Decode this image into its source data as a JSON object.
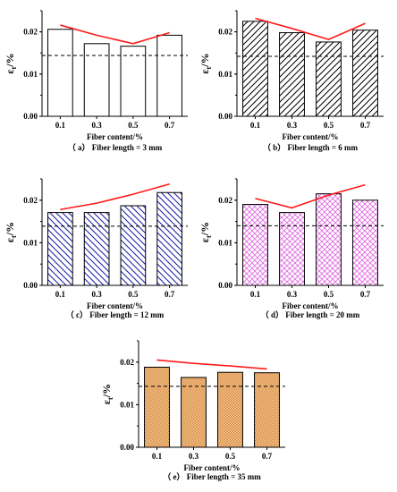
{
  "chart_data": [
    {
      "type": "bar",
      "panel": "a",
      "caption_prefix": "（ a）",
      "caption": "Fiber length = 3 mm",
      "categories": [
        "0.1",
        "0.3",
        "0.5",
        "0.7"
      ],
      "values": [
        0.0206,
        0.0172,
        0.0166,
        0.0192
      ],
      "trend": [
        0.0216,
        0.0192,
        0.0172,
        0.0198
      ],
      "reference": 0.0144,
      "ylim": [
        0,
        0.025
      ],
      "yticks": [
        "0.00",
        "0.01",
        "0.02"
      ],
      "xlabel": "Fiber content/%",
      "ylabel": "εt/%",
      "fill": "plain",
      "color": "#000000"
    },
    {
      "type": "bar",
      "panel": "b",
      "caption_prefix": "（ b）",
      "caption": "Fiber length = 6 mm",
      "categories": [
        "0.1",
        "0.3",
        "0.5",
        "0.7"
      ],
      "values": [
        0.0225,
        0.0198,
        0.0176,
        0.0204
      ],
      "trend": [
        0.0232,
        0.0208,
        0.0182,
        0.022
      ],
      "reference": 0.0142,
      "ylim": [
        0,
        0.025
      ],
      "yticks": [
        "0.00",
        "0.01",
        "0.02"
      ],
      "xlabel": "Fiber content/%",
      "ylabel": "εt/%",
      "fill": "diagonal",
      "color": "#000000"
    },
    {
      "type": "bar",
      "panel": "c",
      "caption_prefix": "（ c）",
      "caption": "Fiber length = 12 mm",
      "categories": [
        "0.1",
        "0.3",
        "0.5",
        "0.7"
      ],
      "values": [
        0.0171,
        0.0171,
        0.0187,
        0.0218
      ],
      "trend": [
        0.0178,
        0.0193,
        0.0214,
        0.0238
      ],
      "reference": 0.0139,
      "ylim": [
        0,
        0.025
      ],
      "yticks": [
        "0.00",
        "0.01",
        "0.02"
      ],
      "xlabel": "Fiber content/%",
      "ylabel": "εt/%",
      "fill": "back-diagonal",
      "color": "#1a1aa6"
    },
    {
      "type": "bar",
      "panel": "d",
      "caption_prefix": "（ d）",
      "caption": "Fiber length = 20 mm",
      "categories": [
        "0.1",
        "0.3",
        "0.5",
        "0.7"
      ],
      "values": [
        0.019,
        0.0171,
        0.0215,
        0.02
      ],
      "trend": [
        0.0204,
        0.0182,
        0.0212,
        0.0236
      ],
      "reference": 0.014,
      "ylim": [
        0,
        0.025
      ],
      "yticks": [
        "0.00",
        "0.01",
        "0.02"
      ],
      "xlabel": "Fiber content/%",
      "ylabel": "εt/%",
      "fill": "crosshatch",
      "color": "#e066e0"
    },
    {
      "type": "bar",
      "panel": "e",
      "caption_prefix": "（ e）",
      "caption": "Fiber length = 35 mm",
      "categories": [
        "0.1",
        "0.3",
        "0.5",
        "0.7"
      ],
      "values": [
        0.0188,
        0.0164,
        0.0176,
        0.0175
      ],
      "trend": [
        0.0205,
        0.0197,
        0.0191,
        0.0184
      ],
      "reference": 0.0143,
      "ylim": [
        0,
        0.025
      ],
      "yticks": [
        "0.00",
        "0.01",
        "0.02"
      ],
      "xlabel": "Fiber content/%",
      "ylabel": "εt/%",
      "fill": "dots",
      "color": "#e8a060"
    }
  ]
}
